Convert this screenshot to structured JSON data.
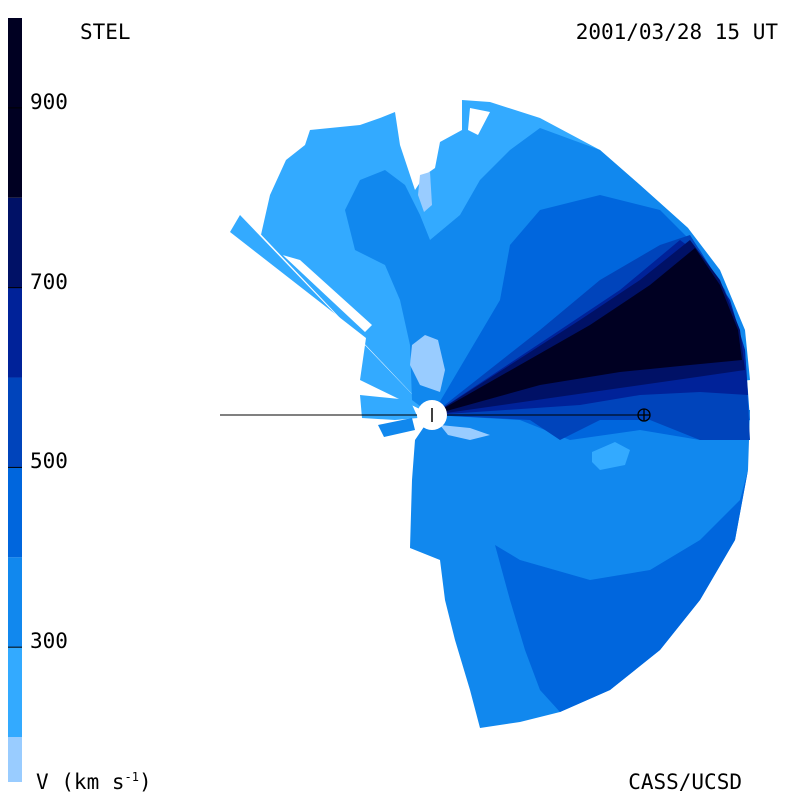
{
  "header": {
    "instrument": "STEL",
    "datetime": "2001/03/28 15 UT"
  },
  "footer": {
    "unit_prefix": "V (km s",
    "unit_exp": "-1",
    "unit_suffix": ")",
    "credit": "CASS/UCSD"
  },
  "colorbar": {
    "ticks": [
      {
        "value": 300,
        "label": "300"
      },
      {
        "value": 500,
        "label": "500"
      },
      {
        "value": 700,
        "label": "700"
      },
      {
        "value": 900,
        "label": "900"
      }
    ],
    "bands": [
      {
        "from": 150,
        "to": 200,
        "color": "#99ccff"
      },
      {
        "from": 200,
        "to": 300,
        "color": "#33aaff"
      },
      {
        "from": 300,
        "to": 400,
        "color": "#1188ee"
      },
      {
        "from": 400,
        "to": 500,
        "color": "#0066dd"
      },
      {
        "from": 500,
        "to": 600,
        "color": "#0044bb"
      },
      {
        "from": 600,
        "to": 700,
        "color": "#002299"
      },
      {
        "from": 700,
        "to": 800,
        "color": "#001166"
      },
      {
        "from": 800,
        "to": 1000,
        "color": "#000022"
      }
    ],
    "range": [
      150,
      1000
    ]
  },
  "colors": {
    "lightest": "#99ccff",
    "light": "#33aaff",
    "medium": "#1188ee",
    "mid_dark": "#0066dd",
    "dark": "#0044bb",
    "darker": "#002299",
    "darkest": "#001166",
    "black": "#000022"
  }
}
